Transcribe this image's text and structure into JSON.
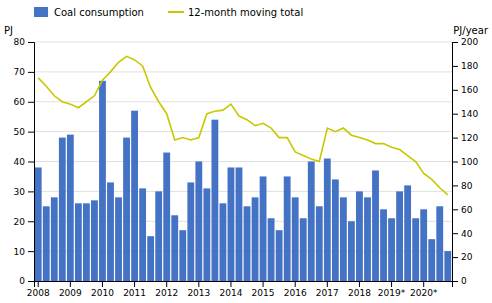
{
  "chart_data": {
    "type": "bar",
    "categories": [
      "2008",
      null,
      null,
      null,
      "2009",
      null,
      null,
      null,
      "2010",
      null,
      null,
      null,
      "2011",
      null,
      null,
      null,
      "2012",
      null,
      null,
      null,
      "2013",
      null,
      null,
      null,
      "2014",
      null,
      null,
      null,
      "2015",
      null,
      null,
      null,
      "2016",
      null,
      null,
      null,
      "2017",
      null,
      null,
      null,
      "2018",
      null,
      null,
      null,
      "2019*",
      null,
      null,
      null,
      "2020*",
      null,
      null,
      null
    ],
    "series": [
      {
        "name": "Coal consumption",
        "type": "bar",
        "color": "#4472c4",
        "values": [
          38,
          25,
          28,
          48,
          49,
          26,
          26,
          27,
          67,
          33,
          28,
          48,
          57,
          31,
          15,
          30,
          43,
          22,
          17,
          33,
          40,
          31,
          54,
          26,
          38,
          38,
          25,
          28,
          35,
          21,
          17,
          35,
          28,
          21,
          40,
          25,
          41,
          34,
          28,
          20,
          30,
          28,
          37,
          24,
          21,
          30,
          32,
          21,
          24,
          14,
          25,
          10
        ]
      },
      {
        "name": "12-month moving total",
        "type": "line",
        "color": "#c8c800",
        "axis": "y2",
        "values": [
          170,
          163,
          155,
          150,
          148,
          145,
          150,
          155,
          168,
          175,
          183,
          188,
          185,
          180,
          162,
          150,
          140,
          118,
          120,
          118,
          120,
          140,
          142,
          143,
          148,
          138,
          135,
          130,
          132,
          128,
          120,
          120,
          108,
          105,
          102,
          100,
          128,
          125,
          128,
          122,
          120,
          118,
          115,
          115,
          112,
          110,
          105,
          100,
          90,
          85,
          78,
          72
        ]
      }
    ],
    "ylabel": "PJ",
    "y2label": "PJ/year",
    "ylim": [
      0,
      80
    ],
    "yticks": [
      0,
      10,
      20,
      30,
      40,
      50,
      60,
      70,
      80
    ],
    "y2lim": [
      0,
      200
    ],
    "y2ticks": [
      0,
      20,
      40,
      60,
      80,
      100,
      120,
      140,
      160,
      180,
      200
    ],
    "grid": true,
    "legend": "top"
  }
}
